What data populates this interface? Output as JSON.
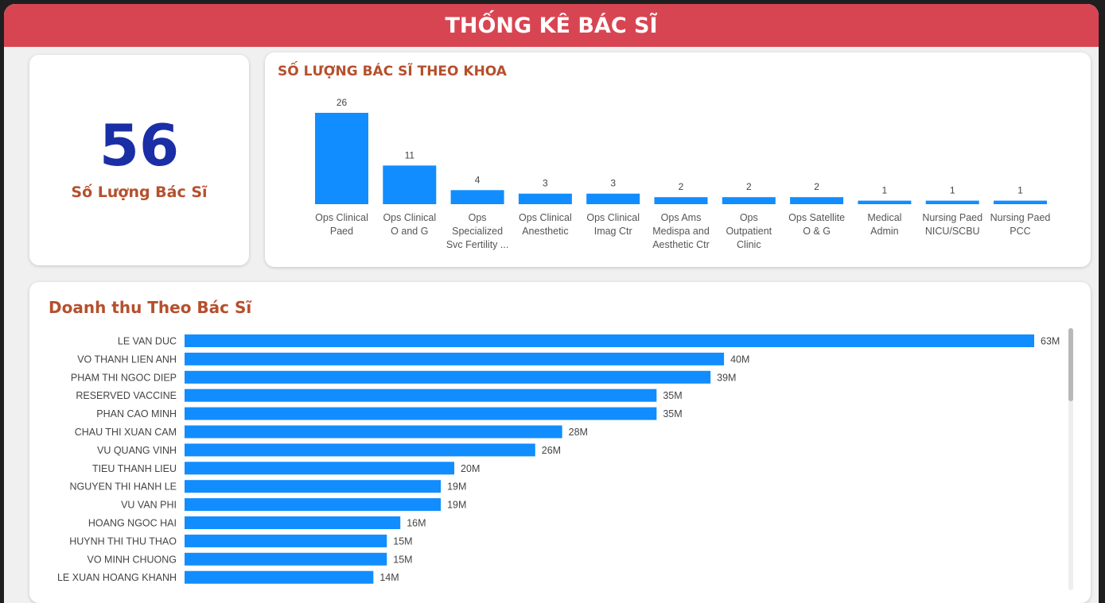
{
  "header": {
    "title": "THỐNG KÊ BÁC SĨ"
  },
  "kpi": {
    "value": "56",
    "label": "Số Lượng Bác Sĩ"
  },
  "colors": {
    "bar": "#118dff",
    "header": "#d84552",
    "title": "#b5502d",
    "kpi": "#1a2ea6"
  },
  "scrollbar": {
    "visible_fraction": 0.28
  },
  "chart_data": [
    {
      "type": "bar",
      "orientation": "vertical",
      "title": "SỐ LƯỢNG BÁC SĨ THEO KHOA",
      "categories": [
        [
          "Ops Clinical",
          "Paed"
        ],
        [
          "Ops Clinical",
          "O and G"
        ],
        [
          "Ops",
          "Specialized",
          "Svc Fertility ..."
        ],
        [
          "Ops Clinical",
          "Anesthetic"
        ],
        [
          "Ops Clinical",
          "Imag Ctr"
        ],
        [
          "Ops Ams",
          "Medispa and",
          "Aesthetic Ctr"
        ],
        [
          "Ops",
          "Outpatient",
          "Clinic"
        ],
        [
          "Ops Satellite",
          "O & G"
        ],
        [
          "Medical",
          "Admin"
        ],
        [
          "Nursing Paed",
          "NICU/SCBU"
        ],
        [
          "Nursing Paed",
          "PCC"
        ]
      ],
      "values": [
        26,
        11,
        4,
        3,
        3,
        2,
        2,
        2,
        1,
        1,
        1
      ],
      "data_labels": [
        "26",
        "11",
        "4",
        "3",
        "3",
        "2",
        "2",
        "2",
        "1",
        "1",
        "1"
      ],
      "ylim": [
        0,
        26
      ],
      "grid": false,
      "legend": "none"
    },
    {
      "type": "bar",
      "orientation": "horizontal",
      "title": "Doanh thu Theo Bác Sĩ",
      "categories": [
        "LE VAN DUC",
        "VO THANH LIEN ANH",
        "PHAM THI NGOC DIEP",
        "RESERVED VACCINE",
        "PHAN CAO MINH",
        "CHAU THI XUAN CAM",
        "VU QUANG VINH",
        "TIEU THANH LIEU",
        "NGUYEN THI HANH LE",
        "VU VAN PHI",
        "HOANG NGOC HAI",
        "HUYNH THI THU THAO",
        "VO MINH CHUONG",
        "LE XUAN HOANG KHANH"
      ],
      "values": [
        63,
        40,
        39,
        35,
        35,
        28,
        26,
        20,
        19,
        19,
        16,
        15,
        15,
        14
      ],
      "data_labels": [
        "63M",
        "40M",
        "39M",
        "35M",
        "35M",
        "28M",
        "26M",
        "20M",
        "19M",
        "19M",
        "16M",
        "15M",
        "15M",
        "14M"
      ],
      "unit": "M",
      "xlim": [
        0,
        63
      ],
      "grid": false,
      "legend": "none"
    }
  ]
}
